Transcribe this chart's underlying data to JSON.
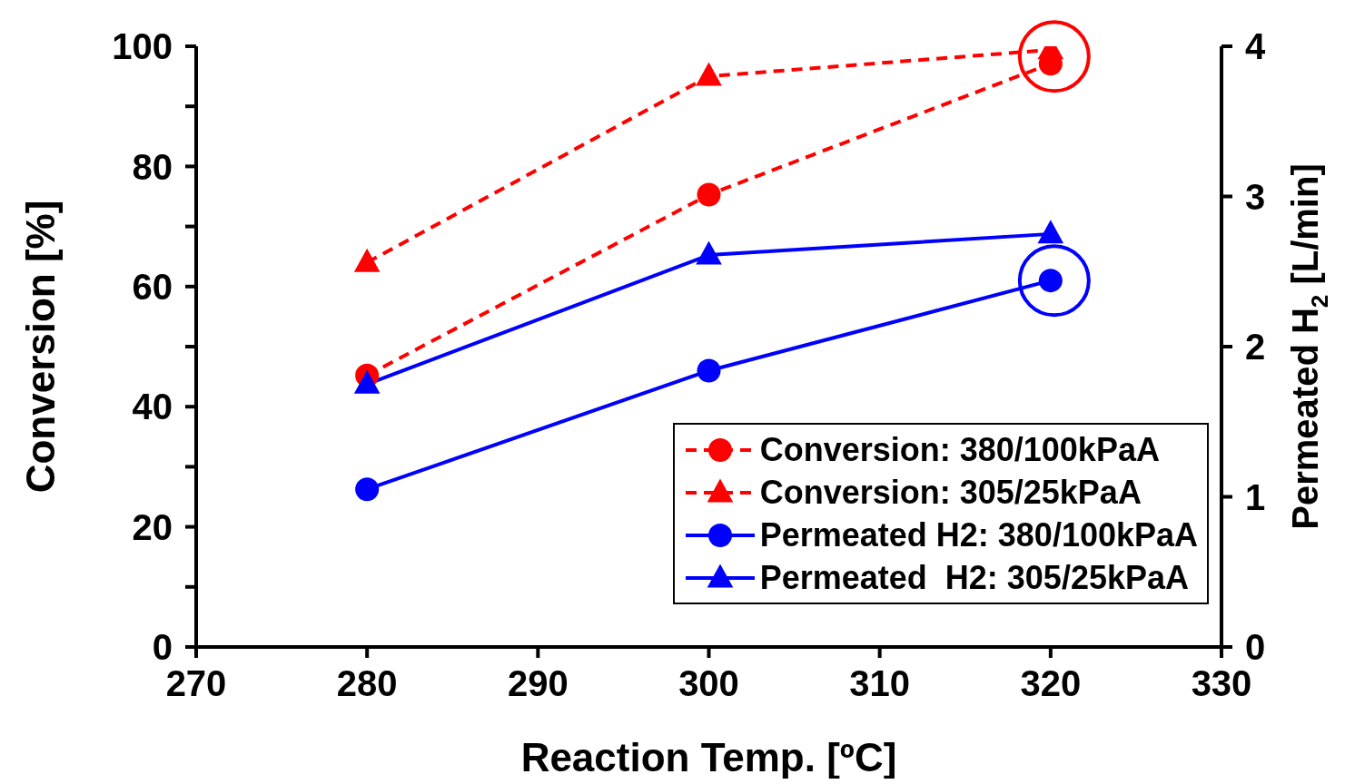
{
  "chart_data": {
    "type": "line",
    "xlabel": "Reaction Temp. [ºC]",
    "ylabel": "Conversion [%]",
    "y2label": "Permeated H$_{2}$ [L/min]",
    "x": [
      280,
      300,
      320
    ],
    "series": [
      {
        "name": "Conversion: 380/100kPaA",
        "color": "#ff0000",
        "values": [
          45.2,
          75.3,
          97.1
        ],
        "marker": "circle",
        "line_style": "dashed"
      },
      {
        "name": "Conversion: 305/25kPaA",
        "color": "#ff0000",
        "values": [
          64,
          95,
          99.4
        ],
        "marker": "triangle",
        "line_style": "dashed"
      },
      {
        "name": "Permeated H2: 380/100kPaA",
        "color": "#0000ff",
        "values": [
          1.05,
          1.84,
          2.44
        ],
        "marker": "circle",
        "line_style": "solid",
        "axis": "y2"
      },
      {
        "name": "Permeated  H2: 305/25kPaA",
        "color": "#0000ff",
        "values": [
          1.75,
          2.61,
          2.75
        ],
        "marker": "triangle",
        "line_style": "solid",
        "axis": "y2"
      }
    ],
    "xlim": [
      270,
      330
    ],
    "xticks": [
      270,
      280,
      290,
      300,
      310,
      320,
      330
    ],
    "ylim": [
      0,
      100
    ],
    "yticks": [
      0,
      {
        "value": 10,
        "label": null
      },
      20,
      {
        "value": 30,
        "label": null
      },
      40,
      {
        "value": 50,
        "label": null
      },
      60,
      {
        "value": 70,
        "label": null
      },
      80,
      {
        "value": 90,
        "label": null
      },
      100
    ],
    "y2lim": [
      0,
      4
    ],
    "y2ticks": [
      0,
      1,
      2,
      3,
      4
    ],
    "legend": "bottom right",
    "grid": false
  }
}
